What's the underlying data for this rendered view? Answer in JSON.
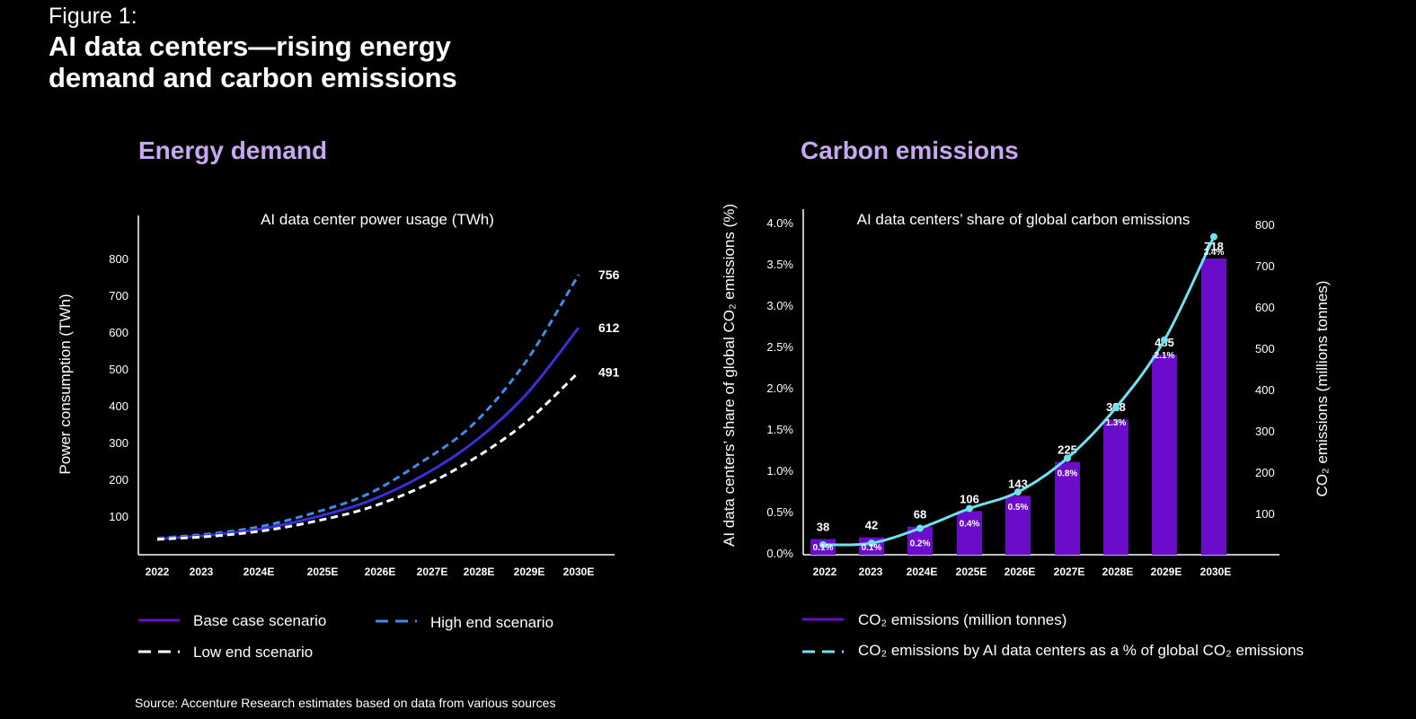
{
  "figure": {
    "label": "Figure 1:",
    "title": "AI data centers—rising energy demand and carbon emissions",
    "source": "Source: Accenture Research estimates based on data from various sources"
  },
  "colors": {
    "purple_bar": "#6a0cc9",
    "base_line": "#3a2fd9",
    "high_line": "#3d8ee8",
    "low_line": "#ffffff",
    "pct_line": "#6fe2f2",
    "title_lilac": "#c9a6f2"
  },
  "chart_data": [
    {
      "type": "line",
      "panel_title": "Energy demand",
      "title": "AI data center power usage (TWh)",
      "ylabel": "Power consumption (TWh)",
      "xlabel": "",
      "ylim": [
        0,
        900
      ],
      "yticks": [
        100,
        200,
        300,
        400,
        500,
        600,
        700,
        800
      ],
      "categories": [
        "2022",
        "2023",
        "2024E",
        "2025E",
        "2026E",
        "2027E",
        "2028E",
        "2029E",
        "2030E"
      ],
      "x_positions_years": [
        2022,
        2023,
        2024,
        2025,
        2026,
        2027,
        2028,
        2029,
        2030
      ],
      "series": [
        {
          "name": "High end scenario",
          "style": "dashed",
          "values": [
            40,
            52,
            73,
            110,
            160,
            245,
            350,
            520,
            756
          ],
          "end_label": "756"
        },
        {
          "name": "Base case scenario",
          "style": "solid",
          "values": [
            38,
            48,
            66,
            97,
            140,
            207,
            300,
            430,
            612
          ],
          "end_label": "612"
        },
        {
          "name": "Low end scenario",
          "style": "dashed",
          "values": [
            37,
            45,
            60,
            86,
            122,
            178,
            255,
            355,
            491
          ],
          "end_label": "491"
        }
      ],
      "legend": [
        {
          "name": "Base case scenario",
          "style": "solid"
        },
        {
          "name": "High end scenario",
          "style": "dashed"
        },
        {
          "name": "Low end scenario",
          "style": "dashed"
        }
      ]
    },
    {
      "type": "bar",
      "panel_title": "Carbon emissions",
      "title": "AI data centers’ share of global carbon emissions",
      "ylabel_left": "AI data centers’ share of global CO₂ emissions (%)",
      "ylabel_right": "CO₂ emissions (millions tonnes)",
      "categories": [
        "2022",
        "2023",
        "2024E",
        "2025E",
        "2026E",
        "2027E",
        "2028E",
        "2029E",
        "2030E"
      ],
      "bar_series": {
        "name": "CO₂ emissions (million tonnes)",
        "values": [
          38,
          42,
          68,
          106,
          143,
          225,
          328,
          485,
          718
        ]
      },
      "pct_series": {
        "name": "CO₂ emissions by AI data centers as a % of global CO₂ emissions",
        "values": [
          0.1,
          0.1,
          0.2,
          0.4,
          0.5,
          0.8,
          1.3,
          2.1,
          3.4
        ],
        "labels": [
          "0.1%",
          "0.1%",
          "0.2%",
          "0.4%",
          "0.5%",
          "0.8%",
          "1.3%",
          "2.1%",
          "3.4%"
        ],
        "plot_values": [
          0.12,
          0.14,
          0.32,
          0.56,
          0.76,
          1.17,
          1.78,
          2.6,
          3.85
        ]
      },
      "ylim_left": [
        0,
        4.0
      ],
      "yticks_left": [
        "0.0%",
        "0.5%",
        "1.0%",
        "1.5%",
        "2.0%",
        "2.5%",
        "3.0%",
        "3.5%",
        "4.0%"
      ],
      "ylim_right": [
        0,
        800
      ],
      "yticks_right": [
        "100",
        "200",
        "300",
        "400",
        "500",
        "600",
        "700",
        "800"
      ],
      "legend": [
        {
          "name": "CO₂ emissions (million tonnes)",
          "style": "solid"
        },
        {
          "name": "CO₂ emissions by AI data centers as a % of global CO₂ emissions",
          "style": "dashed"
        }
      ]
    }
  ]
}
